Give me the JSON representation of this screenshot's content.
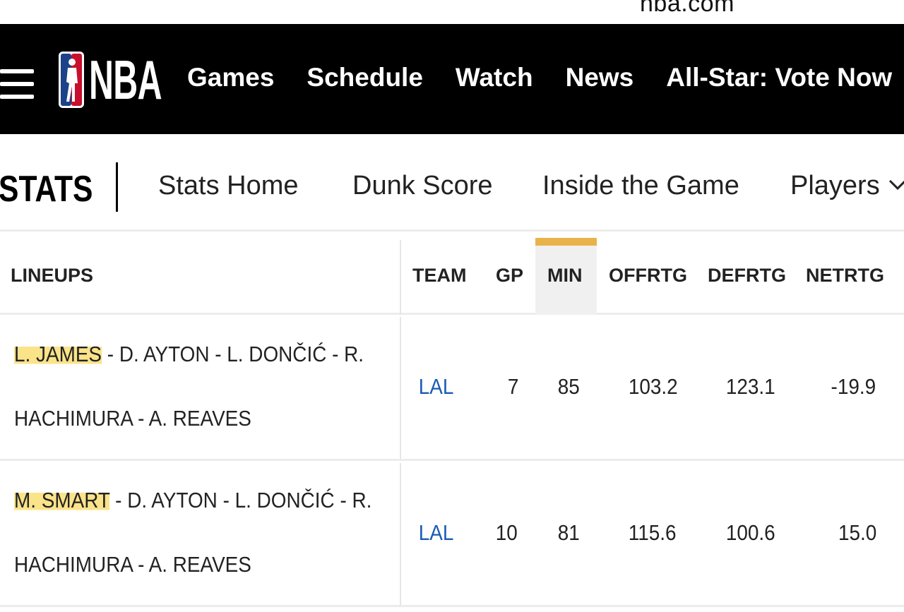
{
  "browser": {
    "url": "nba.com"
  },
  "nav": {
    "logo_text": "NBA",
    "links": [
      "Games",
      "Schedule",
      "Watch",
      "News",
      "All-Star: Vote Now"
    ]
  },
  "subnav": {
    "title": "STATS",
    "links": [
      "Stats Home",
      "Dunk Score",
      "Inside the Game",
      "Players"
    ]
  },
  "table": {
    "headers": {
      "lineups": "LINEUPS",
      "team": "TEAM",
      "gp": "GP",
      "min": "MIN",
      "offrtg": "OFFRTG",
      "defrtg": "DEFRTG",
      "netrtg": "NETRTG"
    },
    "sorted_column": "MIN",
    "accent_color": "#e8b34a",
    "rows": [
      {
        "lineup_highlight": "L. JAMES",
        "lineup_rest_line1": " - D. AYTON - L. DONČIĆ - R.",
        "lineup_line2": "HACHIMURA - A. REAVES",
        "team": "LAL",
        "gp": "7",
        "min": "85",
        "offrtg": "103.2",
        "defrtg": "123.1",
        "netrtg": "-19.9"
      },
      {
        "lineup_highlight": "M. SMART",
        "lineup_rest_line1": " - D. AYTON - L. DONČIĆ - R.",
        "lineup_line2": "HACHIMURA - A. REAVES",
        "team": "LAL",
        "gp": "10",
        "min": "81",
        "offrtg": "115.6",
        "defrtg": "100.6",
        "netrtg": "15.0"
      }
    ]
  }
}
